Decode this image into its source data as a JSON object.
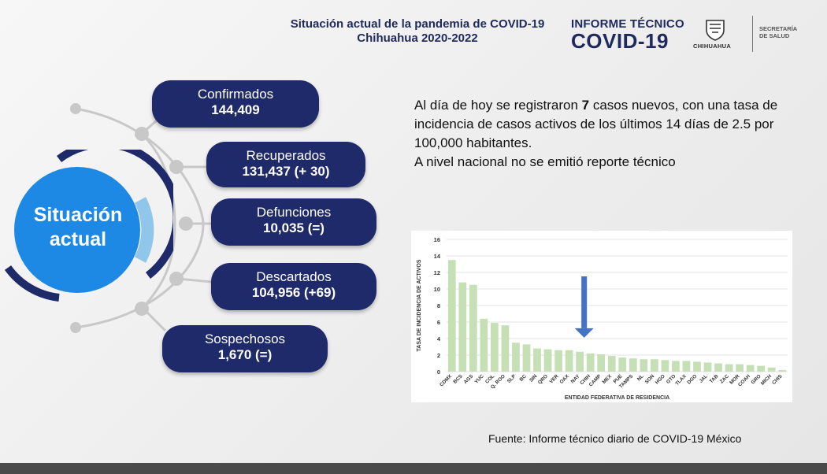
{
  "header": {
    "title_line1": "Situación actual de la pandemia de COVID-19",
    "title_line2": "Chihuahua 2020-2022",
    "brand_line1": "INFORME TÉCNICO",
    "brand_line2": "COVID-19",
    "logo_label": "CHIHUAHUA",
    "secretaria_line1": "SECRETARÍA",
    "secretaria_line2": "DE SALUD"
  },
  "circle": {
    "line1": "Situación",
    "line2": "actual"
  },
  "stats": [
    {
      "label": "Confirmados",
      "value": "144,409"
    },
    {
      "label": "Recuperados",
      "value": "131,437 (+ 30)"
    },
    {
      "label": "Defunciones",
      "value": "10,035 (=)"
    },
    {
      "label": "Descartados",
      "value": "104,956 (+69)"
    },
    {
      "label": "Sospechosos",
      "value": "1,670 (=)"
    }
  ],
  "info": {
    "p1_before": "Al día de hoy se registraron ",
    "p1_bold": "7",
    "p1_after": " casos nuevos, con una tasa de incidencia de casos activos de los últimos 14 días de 2.5 por 100,000 habitantes.",
    "p2": "A nivel nacional no se emitió reporte técnico"
  },
  "source": "Fuente: Informe técnico diario de COVID-19 México",
  "colors": {
    "navy": "#1f2a6a",
    "circle_blue": "#1e88e5",
    "bar_green": "#c5e0b4",
    "arrow_blue": "#4472c4"
  },
  "chart_data": {
    "type": "bar",
    "xlabel": "ENTIDAD FEDERATIVA DE RESIDENCIA",
    "ylabel": "TASA DE INCIDENCIA DE ACTIVOS",
    "ylim": [
      0,
      16
    ],
    "yticks": [
      0,
      2,
      4,
      6,
      8,
      10,
      12,
      14,
      16
    ],
    "grid": true,
    "highlight_category": "CHIH",
    "categories": [
      "CDMX",
      "BCS",
      "AGS",
      "YUC",
      "COL",
      "Q. ROO",
      "SLP",
      "BC",
      "SIN",
      "QRO",
      "VER",
      "OAX",
      "NAY",
      "CHIH",
      "CAMP",
      "MEX",
      "PUE",
      "TAMPS",
      "NL",
      "SON",
      "HGO",
      "GTO",
      "TLAX",
      "DGO",
      "JAL",
      "TAB",
      "ZAC",
      "MOR",
      "COAH",
      "GRO",
      "MICH",
      "CHIS"
    ],
    "values": [
      13.5,
      10.8,
      10.5,
      6.4,
      5.9,
      5.6,
      3.5,
      3.3,
      2.8,
      2.7,
      2.6,
      2.6,
      2.4,
      2.2,
      2.1,
      1.9,
      1.7,
      1.6,
      1.5,
      1.5,
      1.4,
      1.3,
      1.3,
      1.2,
      1.1,
      1.0,
      0.9,
      0.9,
      0.8,
      0.7,
      0.5,
      0.2
    ]
  }
}
